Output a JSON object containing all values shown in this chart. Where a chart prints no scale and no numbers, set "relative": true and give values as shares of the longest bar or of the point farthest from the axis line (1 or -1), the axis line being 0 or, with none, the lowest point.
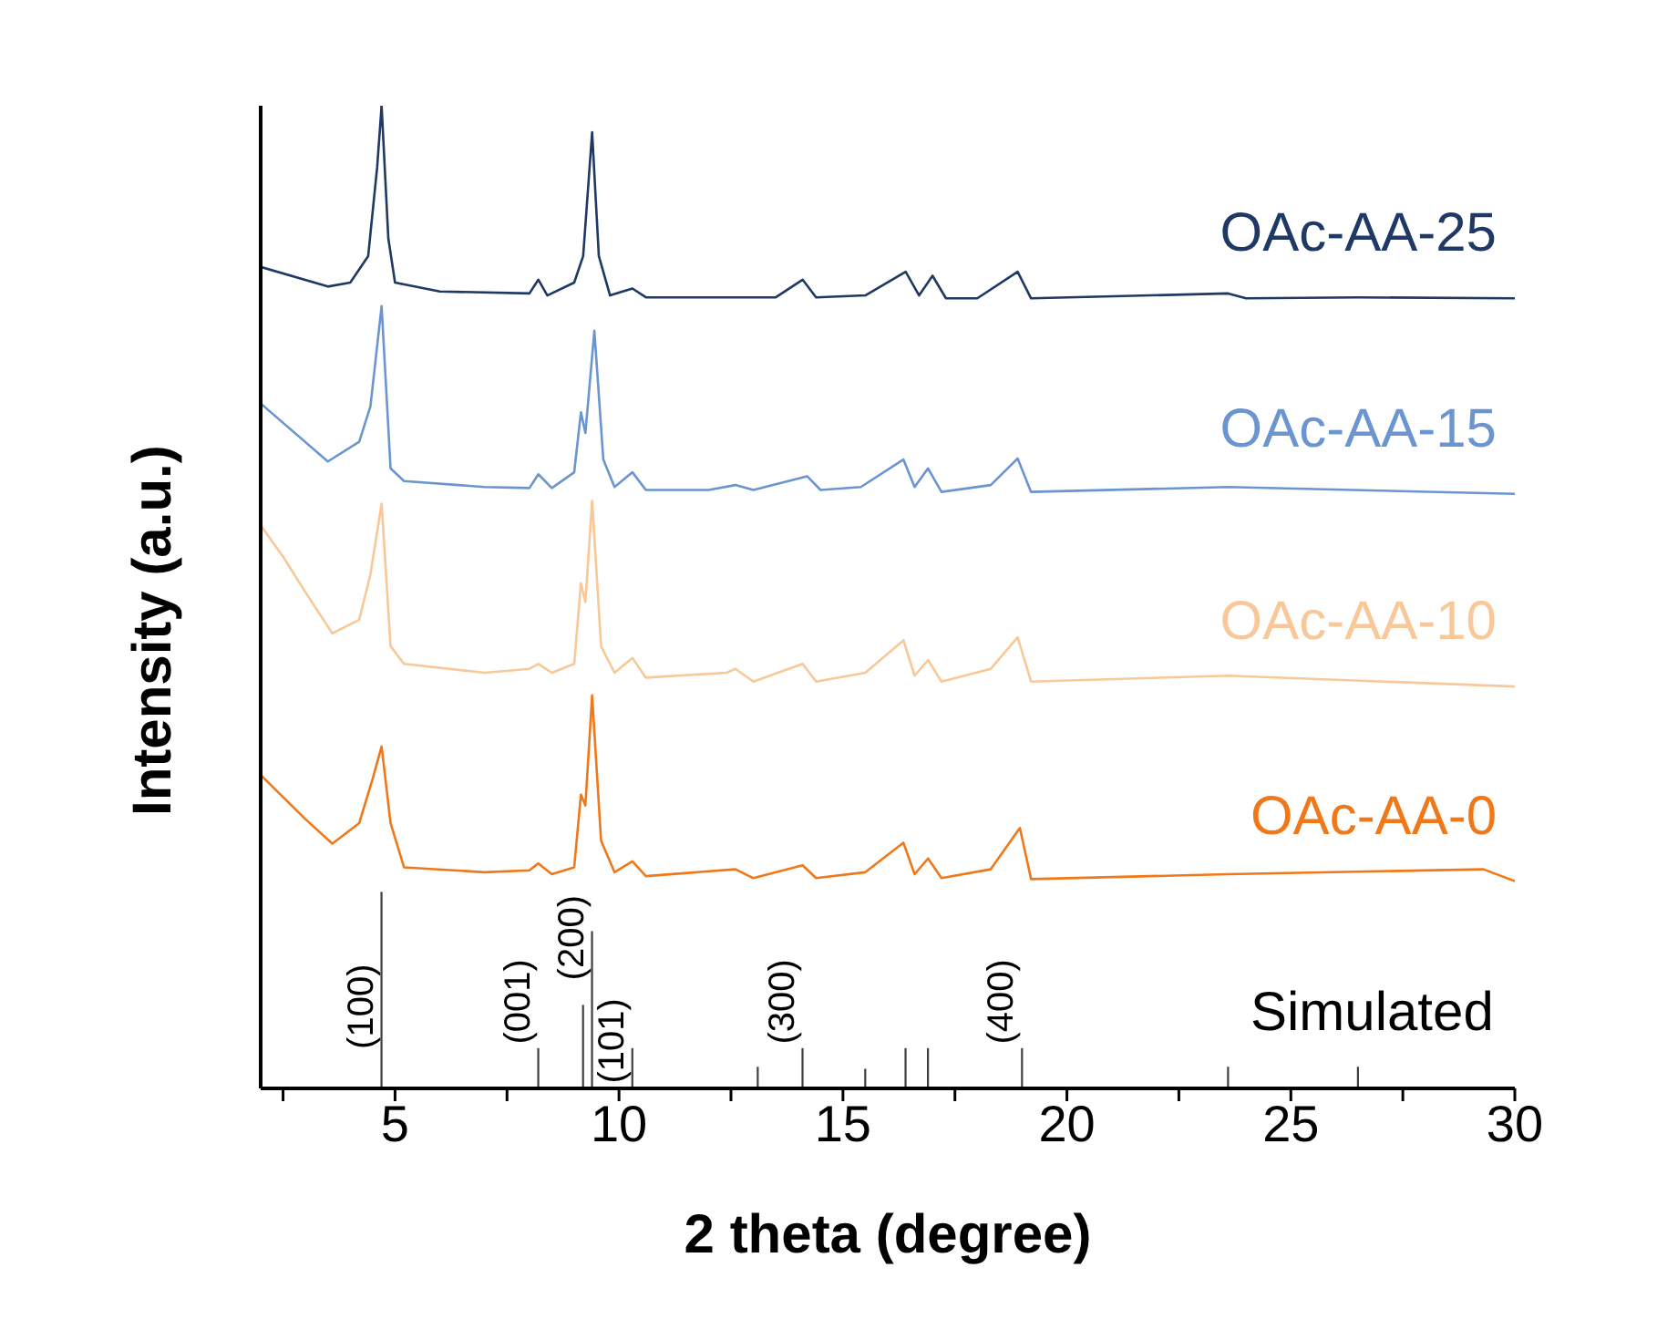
{
  "chart_data": {
    "type": "line",
    "relative": true,
    "xlabel": "2 theta (degree)",
    "ylabel": "Intensity (a.u.)",
    "xlim": [
      2,
      30
    ],
    "xticks": [
      {
        "value": 2.5,
        "label": null
      },
      5,
      {
        "value": 7.5,
        "label": null
      },
      10,
      {
        "value": 12.5,
        "label": null
      },
      15,
      {
        "value": 17.5,
        "label": null
      },
      20,
      {
        "value": 22.5,
        "label": null
      },
      25,
      {
        "value": 27.5,
        "label": null
      },
      30
    ],
    "grid": false,
    "legend": false,
    "marker": "none",
    "line_style": "solid",
    "series": [
      {
        "name": "OAc-AA-25",
        "color": "#1f3864",
        "x": [
          2,
          3.5,
          4,
          4.4,
          4.6,
          4.7,
          4.85,
          5,
          6,
          8,
          8.2,
          8.4,
          9,
          9.2,
          9.4,
          9.55,
          9.8,
          10.3,
          10.6,
          13.5,
          14.1,
          14.4,
          15.5,
          16.4,
          16.7,
          17,
          17.3,
          18,
          18.9,
          19.2,
          23.6,
          24,
          26.5,
          30
        ],
        "values": [
          0.836,
          0.816,
          0.82,
          0.847,
          0.937,
          1.0,
          0.865,
          0.82,
          0.811,
          0.809,
          0.823,
          0.807,
          0.82,
          0.847,
          0.973,
          0.847,
          0.807,
          0.814,
          0.805,
          0.805,
          0.823,
          0.805,
          0.807,
          0.831,
          0.807,
          0.827,
          0.804,
          0.804,
          0.831,
          0.804,
          0.809,
          0.804,
          0.805,
          0.804
        ]
      },
      {
        "name": "OAc-AA-15",
        "color": "#6a95d0",
        "x": [
          2,
          3.5,
          4.2,
          4.45,
          4.7,
          4.9,
          5.2,
          7,
          8,
          8.2,
          8.5,
          9,
          9.15,
          9.25,
          9.45,
          9.65,
          9.9,
          10.3,
          10.6,
          12,
          12.6,
          13,
          14.2,
          14.5,
          15.4,
          16.35,
          16.6,
          16.9,
          17.2,
          18.3,
          18.9,
          19.2,
          23.6,
          30
        ],
        "values": [
          0.697,
          0.638,
          0.658,
          0.694,
          0.796,
          0.631,
          0.618,
          0.612,
          0.611,
          0.625,
          0.611,
          0.627,
          0.688,
          0.667,
          0.771,
          0.64,
          0.612,
          0.627,
          0.609,
          0.609,
          0.614,
          0.609,
          0.623,
          0.609,
          0.612,
          0.64,
          0.612,
          0.631,
          0.607,
          0.614,
          0.641,
          0.607,
          0.612,
          0.605
        ]
      },
      {
        "name": "OAc-AA-10",
        "color": "#f8c898",
        "x": [
          2,
          2.5,
          3,
          3.6,
          4.2,
          4.45,
          4.7,
          4.9,
          5.2,
          7,
          8,
          8.2,
          8.5,
          9,
          9.15,
          9.25,
          9.4,
          9.6,
          9.9,
          10.3,
          10.6,
          12.4,
          12.6,
          13,
          14.1,
          14.4,
          15.5,
          16.35,
          16.6,
          16.9,
          17.2,
          18.3,
          18.9,
          19.2,
          23.6,
          30
        ],
        "values": [
          0.573,
          0.541,
          0.505,
          0.463,
          0.477,
          0.523,
          0.595,
          0.45,
          0.432,
          0.423,
          0.427,
          0.432,
          0.423,
          0.432,
          0.514,
          0.495,
          0.598,
          0.45,
          0.423,
          0.438,
          0.418,
          0.423,
          0.427,
          0.414,
          0.432,
          0.414,
          0.423,
          0.456,
          0.42,
          0.436,
          0.414,
          0.427,
          0.459,
          0.414,
          0.42,
          0.409
        ]
      },
      {
        "name": "OAc-AA-0",
        "color": "#f07818",
        "x": [
          2,
          3,
          3.6,
          4.2,
          4.5,
          4.7,
          4.9,
          5.2,
          7,
          8,
          8.2,
          8.5,
          9,
          9.15,
          9.25,
          9.4,
          9.6,
          9.9,
          10.3,
          10.6,
          12.6,
          13,
          14.1,
          14.4,
          15.5,
          16.35,
          16.6,
          16.9,
          17.2,
          18.3,
          18.95,
          19.2,
          23.6,
          29.3,
          30
        ],
        "values": [
          0.319,
          0.274,
          0.249,
          0.27,
          0.315,
          0.348,
          0.27,
          0.225,
          0.22,
          0.222,
          0.229,
          0.218,
          0.225,
          0.299,
          0.288,
          0.4,
          0.252,
          0.22,
          0.231,
          0.216,
          0.223,
          0.214,
          0.227,
          0.214,
          0.22,
          0.25,
          0.218,
          0.234,
          0.214,
          0.223,
          0.265,
          0.213,
          0.218,
          0.223,
          0.211
        ]
      },
      {
        "name": "Simulated",
        "type": "bar",
        "color": "#404040",
        "x": [
          4.7,
          8.2,
          9.2,
          9.4,
          10.3,
          13.1,
          14.1,
          15.5,
          16.4,
          16.9,
          19,
          23.6,
          26.5
        ],
        "values": [
          0.2,
          0.041,
          0.085,
          0.16,
          0.041,
          0.022,
          0.041,
          0.02,
          0.041,
          0.041,
          0.041,
          0.022,
          0.022
        ]
      }
    ],
    "annotations": [
      {
        "text": "(100)",
        "x": 4.7,
        "y": 0.04
      },
      {
        "text": "(001)",
        "x": 8.2,
        "y": 0.045
      },
      {
        "text": "(200)",
        "x": 9.4,
        "y": 0.11
      },
      {
        "text": "(101)",
        "x": 10.3,
        "y": 0.005
      },
      {
        "text": "(300)",
        "x": 14.1,
        "y": 0.045
      },
      {
        "text": "(400)",
        "x": 19,
        "y": 0.045
      }
    ]
  }
}
